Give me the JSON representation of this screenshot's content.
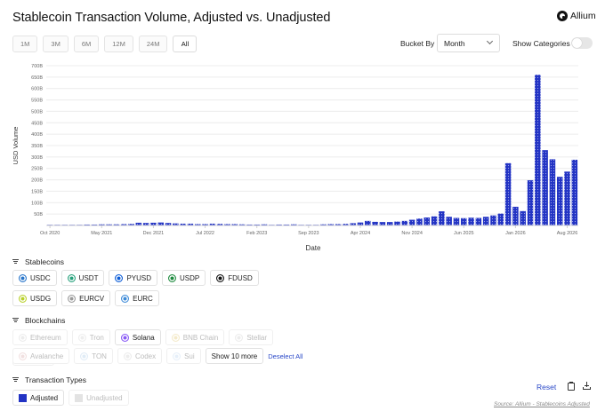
{
  "header": {
    "title": "Stablecoin Transaction Volume, Adjusted vs. Unadjusted",
    "brand": "Allium"
  },
  "range_buttons": [
    {
      "label": "1M",
      "active": false
    },
    {
      "label": "3M",
      "active": false
    },
    {
      "label": "6M",
      "active": false
    },
    {
      "label": "12M",
      "active": false
    },
    {
      "label": "24M",
      "active": false
    },
    {
      "label": "All",
      "active": true
    }
  ],
  "controls": {
    "bucket_label": "Bucket By",
    "bucket_value": "Month",
    "show_categories_label": "Show Categories",
    "show_categories_on": false
  },
  "chart_data": {
    "type": "bar",
    "title": "",
    "xlabel": "Date",
    "ylabel": "USD Volume",
    "y_unit": "B",
    "ylim": [
      0,
      700
    ],
    "y_ticks": [
      50,
      100,
      150,
      200,
      250,
      300,
      350,
      400,
      450,
      500,
      550,
      600,
      650,
      700
    ],
    "y_tick_labels": [
      "50B",
      "100B",
      "150B",
      "200B",
      "250B",
      "300B",
      "350B",
      "400B",
      "450B",
      "500B",
      "550B",
      "600B",
      "650B",
      "700B"
    ],
    "x_tick_labels": [
      "Oct 2020",
      "May 2021",
      "Dec 2021",
      "Jul 2022",
      "Feb 2023",
      "Sep 2023",
      "Apr 2024",
      "Nov 2024",
      "Jun 2025",
      "Jan 2026",
      "Aug 2026"
    ],
    "x_tick_indices": [
      0,
      7,
      14,
      21,
      28,
      35,
      42,
      49,
      56,
      63,
      70
    ],
    "categories_start": "Oct 2020",
    "categories_end": "Aug 2026",
    "grid": true,
    "legend": "none",
    "bar_color": "#2233c4",
    "series": [
      {
        "name": "Adjusted",
        "values": [
          1,
          2,
          2,
          3,
          3,
          4,
          4,
          5,
          5,
          5,
          6,
          7,
          12,
          11,
          12,
          13,
          11,
          9,
          8,
          8,
          6,
          6,
          8,
          7,
          6,
          6,
          5,
          4,
          4,
          5,
          3,
          4,
          4,
          5,
          3,
          3,
          3,
          5,
          6,
          6,
          7,
          10,
          13,
          20,
          16,
          15,
          15,
          17,
          20,
          25,
          30,
          35,
          40,
          62,
          38,
          33,
          32,
          34,
          33,
          38,
          44,
          52,
          273,
          82,
          63,
          198,
          660,
          330,
          290,
          213,
          236,
          288
        ]
      }
    ]
  },
  "stablecoins": {
    "title": "Stablecoins",
    "items": [
      {
        "label": "USDC",
        "icon": "usdc-icon",
        "color": "#2775ca"
      },
      {
        "label": "USDT",
        "icon": "usdt-icon",
        "color": "#26a17b"
      },
      {
        "label": "PYUSD",
        "icon": "pyusd-icon",
        "color": "#0a5bd6"
      },
      {
        "label": "USDP",
        "icon": "usdp-icon",
        "color": "#1d8a3e"
      },
      {
        "label": "FDUSD",
        "icon": "fdusd-icon",
        "color": "#111111"
      },
      {
        "label": "USDG",
        "icon": "usdg-icon",
        "color": "#b8d02b"
      },
      {
        "label": "EURCV",
        "icon": "eurcv-icon",
        "color": "#9a9a9a"
      },
      {
        "label": "EURC",
        "icon": "eurc-icon",
        "color": "#3e8bd8"
      }
    ]
  },
  "blockchains": {
    "title": "Blockchains",
    "items": [
      {
        "label": "Ethereum",
        "icon": "ethereum-icon",
        "active": false
      },
      {
        "label": "Tron",
        "icon": "tron-icon",
        "active": false
      },
      {
        "label": "Solana",
        "icon": "solana-icon",
        "active": true
      },
      {
        "label": "BNB Chain",
        "icon": "bnb-icon",
        "active": false
      },
      {
        "label": "Stellar",
        "icon": "stellar-icon",
        "active": false
      },
      {
        "label": "Aptos",
        "icon": "aptos-icon",
        "active": false
      },
      {
        "label": "Avalanche",
        "icon": "avalanche-icon",
        "active": false
      },
      {
        "label": "TON",
        "icon": "ton-icon",
        "active": false
      },
      {
        "label": "Codex",
        "icon": "codex-icon",
        "active": false
      },
      {
        "label": "Sui",
        "icon": "sui-icon",
        "active": false
      }
    ],
    "show_more": "Show 10 more",
    "deselect_all": "Deselect All"
  },
  "transaction_types": {
    "title": "Transaction Types",
    "items": [
      {
        "label": "Adjusted",
        "color": "#2233c4",
        "active": true
      },
      {
        "label": "Unadjusted",
        "color": "#e3e3e3",
        "active": false
      }
    ]
  },
  "footer": {
    "reset": "Reset",
    "source": "Source: Allium - Stablecoins Adjusted"
  }
}
